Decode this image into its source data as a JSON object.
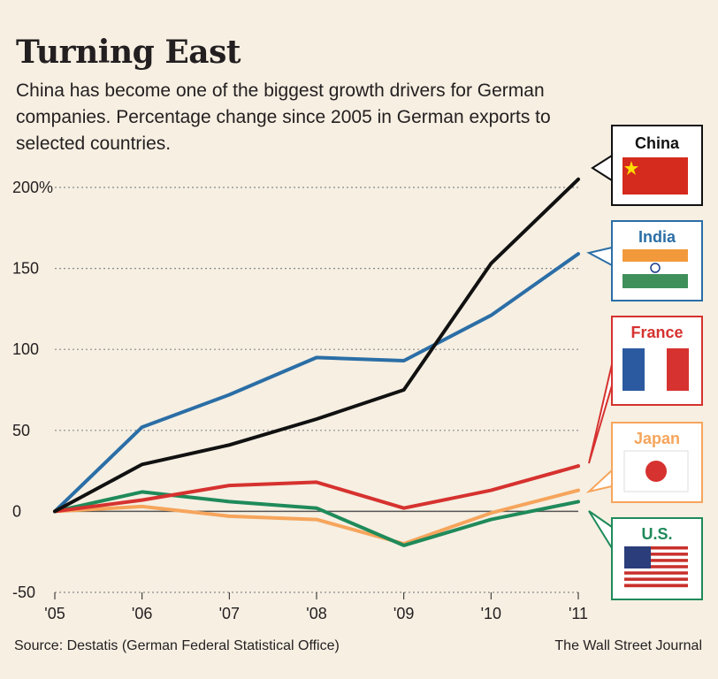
{
  "header": {
    "title": "Turning East",
    "subtitle": "China has become one of the biggest growth drivers for German companies. Percentage change since 2005 in German exports to selected countries."
  },
  "footer": {
    "source": "Source: Destatis (German Federal Statistical Office)",
    "credit": "The Wall Street Journal"
  },
  "colors": {
    "china": "#111111",
    "india": "#2b6ea6",
    "france": "#d6322f",
    "japan": "#f6a55c",
    "us": "#1f8a5a",
    "background": "#f6efe2"
  },
  "chart_data": {
    "type": "line",
    "x": [
      "'05",
      "'06",
      "'07",
      "'08",
      "'09",
      "'10",
      "'11"
    ],
    "ylim": [
      -50,
      200
    ],
    "yticks": [
      200,
      150,
      100,
      50,
      0,
      -50
    ],
    "ytick_labels": [
      "200%",
      "150",
      "100",
      "50",
      "0",
      "-50"
    ],
    "grid": true,
    "legend_position": "right",
    "series": [
      {
        "name": "China",
        "color": "#111111",
        "values": [
          0,
          29,
          41,
          57,
          75,
          153,
          205
        ]
      },
      {
        "name": "India",
        "color": "#2b6ea6",
        "values": [
          0,
          52,
          72,
          95,
          93,
          121,
          159
        ]
      },
      {
        "name": "France",
        "color": "#d6322f",
        "values": [
          0,
          7,
          16,
          18,
          2,
          13,
          28
        ]
      },
      {
        "name": "Japan",
        "color": "#f6a55c",
        "values": [
          0,
          3,
          -3,
          -5,
          -20,
          -1,
          13
        ]
      },
      {
        "name": "U.S.",
        "color": "#1f8a5a",
        "values": [
          0,
          12,
          6,
          2,
          -21,
          -5,
          6
        ]
      }
    ]
  }
}
